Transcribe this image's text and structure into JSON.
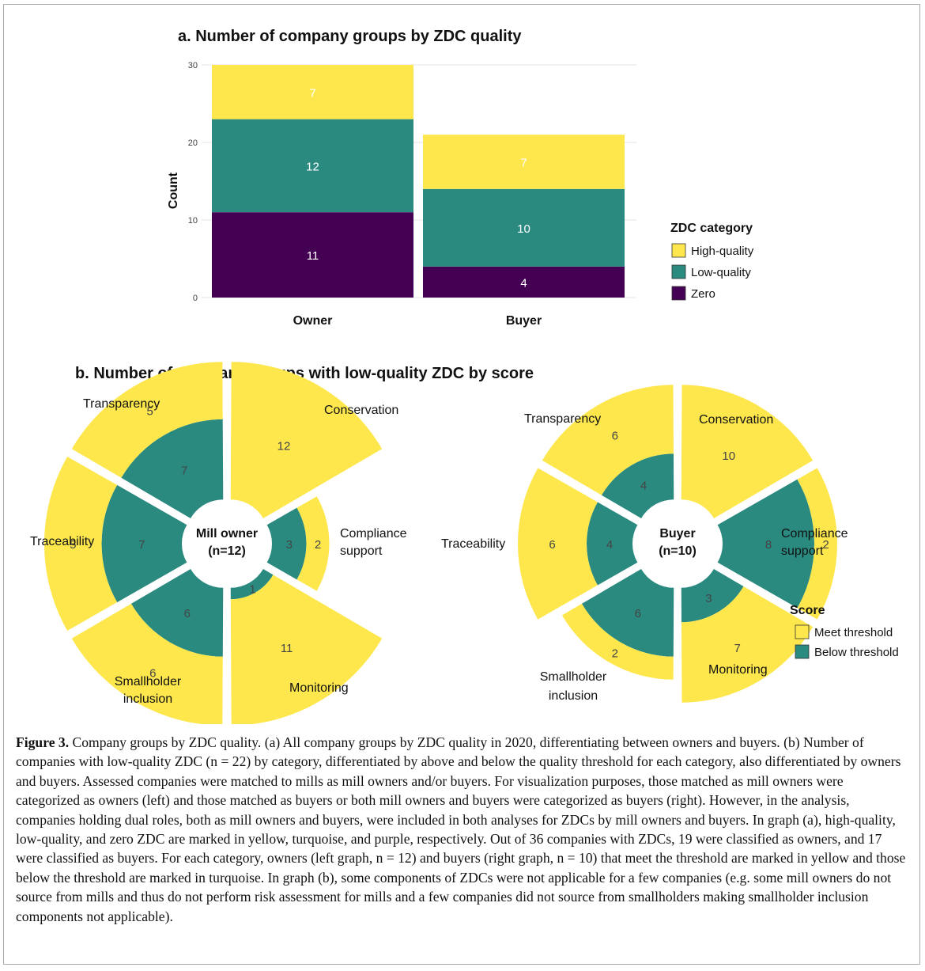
{
  "colors": {
    "high_quality": "#FDE74C",
    "low_quality": "#2A8A80",
    "zero": "#440154",
    "meet_threshold": "#FDE74C",
    "below_threshold": "#2A8A80",
    "grid": "#e6e6e6"
  },
  "chart_data": [
    {
      "type": "bar",
      "stacked": true,
      "title": "a. Number of company groups by ZDC quality",
      "ylabel": "Count",
      "xlabel": "",
      "ylim": [
        0,
        30
      ],
      "yticks": [
        "0",
        "10",
        "20",
        "30"
      ],
      "categories": [
        "Owner",
        "Buyer"
      ],
      "series": [
        {
          "name": "Zero",
          "values": [
            11,
            4
          ]
        },
        {
          "name": "Low-quality",
          "values": [
            12,
            10
          ]
        },
        {
          "name": "High-quality",
          "values": [
            7,
            7
          ]
        }
      ],
      "legend": {
        "title": "ZDC category",
        "placement": "right",
        "entries": [
          "High-quality",
          "Low-quality",
          "Zero"
        ]
      }
    },
    {
      "type": "polar-bar",
      "title": "b. Number of company groups with low-quality ZDC by score",
      "panels": [
        {
          "center_label": [
            "Mill owner",
            "(n=12)"
          ],
          "categories": [
            "Conservation",
            "Compliance support",
            "Monitoring",
            "Smallholder inclusion",
            "Traceability",
            "Transparency"
          ],
          "category_labels": [
            [
              "Conservation"
            ],
            [
              "Compliance",
              "support"
            ],
            [
              "Monitoring"
            ],
            [
              "Smallholder",
              "inclusion"
            ],
            [
              "Traceability"
            ],
            [
              "Transparency"
            ]
          ],
          "series": [
            {
              "name": "Below threshold",
              "values": [
                0,
                3,
                1,
                6,
                7,
                7
              ]
            },
            {
              "name": "Meet threshold",
              "values": [
                12,
                2,
                11,
                6,
                5,
                5
              ]
            }
          ]
        },
        {
          "center_label": [
            "Buyer",
            "(n=10)"
          ],
          "categories": [
            "Conservation",
            "Compliance support",
            "Monitoring",
            "Smallholder inclusion",
            "Traceability",
            "Transparency"
          ],
          "category_labels": [
            [
              "Conservation"
            ],
            [
              "Compliance",
              "support"
            ],
            [
              "Monitoring"
            ],
            [
              "Smallholder",
              "inclusion"
            ],
            [
              "Traceability"
            ],
            [
              "Transparency"
            ]
          ],
          "series": [
            {
              "name": "Below threshold",
              "values": [
                0,
                8,
                3,
                6,
                4,
                4
              ]
            },
            {
              "name": "Meet threshold",
              "values": [
                10,
                2,
                7,
                2,
                6,
                6
              ]
            }
          ]
        }
      ],
      "legend": {
        "title": "Score",
        "placement": "right",
        "entries": [
          "Meet threshold",
          "Below threshold"
        ]
      }
    }
  ],
  "caption": {
    "label": "Figure 3.",
    "text": " Company groups by ZDC quality. (a) All company groups by ZDC quality in 2020, differentiating between owners and buyers. (b) Number of companies with low-quality ZDC (n = 22) by category, differentiated by above and below the quality threshold for each category, also differentiated by owners and buyers. Assessed companies were matched to mills as mill owners and/or buyers. For visualization purposes, those matched as mill owners were categorized as owners (left) and those matched as buyers or both mill owners and buyers were categorized as buyers (right). However, in the analysis, companies holding dual roles, both as mill owners and buyers, were included in both analyses for ZDCs by mill owners and buyers. In graph (a), high-quality, low-quality, and zero ZDC are marked in yellow, turquoise, and purple, respectively. Out of 36 companies with ZDCs, 19 were classified as owners, and 17 were classified as buyers. For each category, owners (left graph, n = 12) and buyers (right graph, n = 10) that meet the threshold are marked in yellow and those below the threshold are marked in turquoise. In graph (b), some components of ZDCs were not applicable for a few companies (e.g. some mill owners do not source from mills and thus do not perform risk assessment for mills and a few companies did not source from smallholders making smallholder inclusion components not applicable)."
  }
}
